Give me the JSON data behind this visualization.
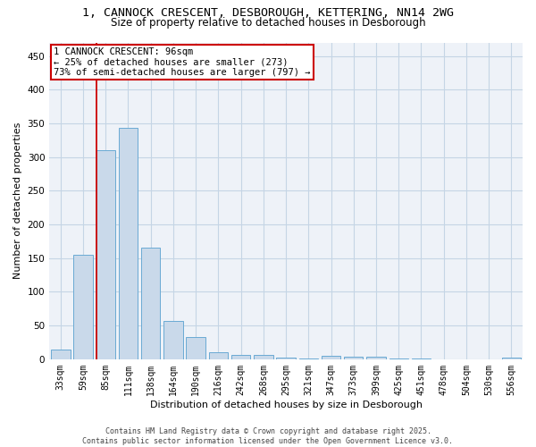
{
  "title_line1": "1, CANNOCK CRESCENT, DESBOROUGH, KETTERING, NN14 2WG",
  "title_line2": "Size of property relative to detached houses in Desborough",
  "xlabel": "Distribution of detached houses by size in Desborough",
  "ylabel": "Number of detached properties",
  "bar_color": "#c9d9ea",
  "bar_edge_color": "#6aaad4",
  "grid_color": "#c5d5e5",
  "bg_color": "#eef2f8",
  "categories": [
    "33sqm",
    "59sqm",
    "85sqm",
    "111sqm",
    "138sqm",
    "164sqm",
    "190sqm",
    "216sqm",
    "242sqm",
    "268sqm",
    "295sqm",
    "321sqm",
    "347sqm",
    "373sqm",
    "399sqm",
    "425sqm",
    "451sqm",
    "478sqm",
    "504sqm",
    "530sqm",
    "556sqm"
  ],
  "values": [
    15,
    155,
    310,
    343,
    165,
    57,
    33,
    10,
    7,
    6,
    3,
    1,
    5,
    4,
    4,
    1,
    1,
    0,
    0,
    0,
    3
  ],
  "vline_x_index": 2,
  "vline_color": "#cc0000",
  "annotation_text_line1": "1 CANNOCK CRESCENT: 96sqm",
  "annotation_text_line2": "← 25% of detached houses are smaller (273)",
  "annotation_text_line3": "73% of semi-detached houses are larger (797) →",
  "annotation_box_color": "#cc0000",
  "footer_text": "Contains HM Land Registry data © Crown copyright and database right 2025.\nContains public sector information licensed under the Open Government Licence v3.0.",
  "ylim": [
    0,
    470
  ],
  "yticks": [
    0,
    50,
    100,
    150,
    200,
    250,
    300,
    350,
    400,
    450
  ],
  "title_fontsize": 9.5,
  "subtitle_fontsize": 8.5,
  "tick_fontsize": 7,
  "ylabel_fontsize": 8,
  "xlabel_fontsize": 8,
  "annotation_fontsize": 7.5,
  "footer_fontsize": 6
}
